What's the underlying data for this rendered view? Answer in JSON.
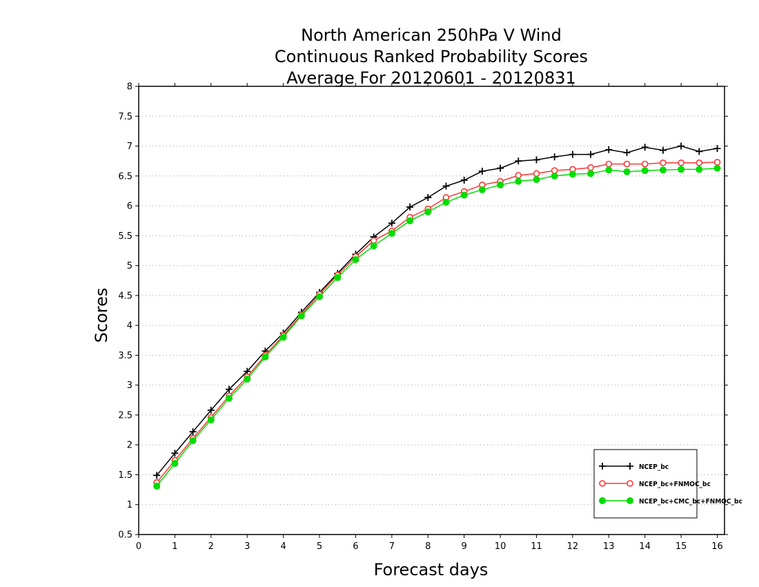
{
  "chart_data": {
    "type": "line",
    "title_lines": [
      "North American 250hPa V Wind",
      "Continuous Ranked Probability Scores",
      "Average For 20120601 - 20120831"
    ],
    "xlabel": "Forecast days",
    "ylabel": "Scores",
    "xlim": [
      0,
      16.2
    ],
    "ylim": [
      0.5,
      8
    ],
    "xticks": [
      0,
      1,
      2,
      3,
      4,
      5,
      6,
      7,
      8,
      9,
      10,
      11,
      12,
      13,
      14,
      15,
      16
    ],
    "yticks": [
      0.5,
      1,
      1.5,
      2,
      2.5,
      3,
      3.5,
      4,
      4.5,
      5,
      5.5,
      6,
      6.5,
      7,
      7.5,
      8
    ],
    "ytick_labels": [
      "0.5",
      "1",
      "1.5",
      "2",
      "2.5",
      "3",
      "3.5",
      "4",
      "4.5",
      "5",
      "5.5",
      "6",
      "6.5",
      "7",
      "7.5",
      "8"
    ],
    "grid": "horizontal dotted",
    "legend_position": "bottom-right",
    "x": [
      0.5,
      1,
      1.5,
      2,
      2.5,
      3,
      3.5,
      4,
      4.5,
      5,
      5.5,
      6,
      6.5,
      7,
      7.5,
      8,
      8.5,
      9,
      9.5,
      10,
      10.5,
      11,
      11.5,
      12,
      12.5,
      13,
      13.5,
      14,
      14.5,
      15,
      15.5,
      16
    ],
    "series": [
      {
        "name": "NCEP_bc",
        "color": "#000000",
        "marker": "plus",
        "values": [
          1.49,
          1.86,
          2.22,
          2.58,
          2.93,
          3.23,
          3.57,
          3.87,
          4.22,
          4.55,
          4.87,
          5.19,
          5.48,
          5.71,
          5.98,
          6.14,
          6.33,
          6.43,
          6.58,
          6.63,
          6.75,
          6.77,
          6.82,
          6.86,
          6.86,
          6.94,
          6.89,
          6.98,
          6.93,
          7.0,
          6.91,
          6.96
        ]
      },
      {
        "name": "NCEP_bc+FNMOC_bc",
        "color": "#ff3333",
        "marker": "open-circle",
        "values": [
          1.37,
          1.74,
          2.11,
          2.46,
          2.82,
          3.14,
          3.5,
          3.83,
          4.18,
          4.52,
          4.84,
          5.15,
          5.42,
          5.58,
          5.81,
          5.95,
          6.14,
          6.24,
          6.35,
          6.41,
          6.51,
          6.54,
          6.59,
          6.61,
          6.64,
          6.7,
          6.7,
          6.7,
          6.72,
          6.72,
          6.72,
          6.73
        ]
      },
      {
        "name": "NCEP_bc+CMC_bc+FNMOC_bc",
        "color": "#00dd00",
        "marker": "filled-circle",
        "values": [
          1.31,
          1.69,
          2.07,
          2.42,
          2.78,
          3.1,
          3.47,
          3.8,
          4.16,
          4.48,
          4.8,
          5.1,
          5.33,
          5.54,
          5.75,
          5.9,
          6.06,
          6.18,
          6.27,
          6.35,
          6.41,
          6.44,
          6.5,
          6.53,
          6.54,
          6.6,
          6.57,
          6.59,
          6.6,
          6.61,
          6.61,
          6.63
        ]
      }
    ]
  }
}
